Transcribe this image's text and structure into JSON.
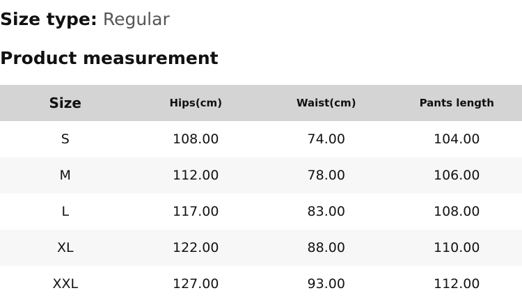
{
  "size_type": {
    "label": "Size type:",
    "value": "Regular"
  },
  "section_title": "Product measurement",
  "table": {
    "headers": [
      "Size",
      "Hips(cm)",
      "Waist(cm)",
      "Pants length"
    ],
    "rows": [
      [
        "S",
        "108.00",
        "74.00",
        "104.00"
      ],
      [
        "M",
        "112.00",
        "78.00",
        "106.00"
      ],
      [
        "L",
        "117.00",
        "83.00",
        "108.00"
      ],
      [
        "XL",
        "122.00",
        "88.00",
        "110.00"
      ],
      [
        "XXL",
        "127.00",
        "93.00",
        "112.00"
      ]
    ]
  }
}
